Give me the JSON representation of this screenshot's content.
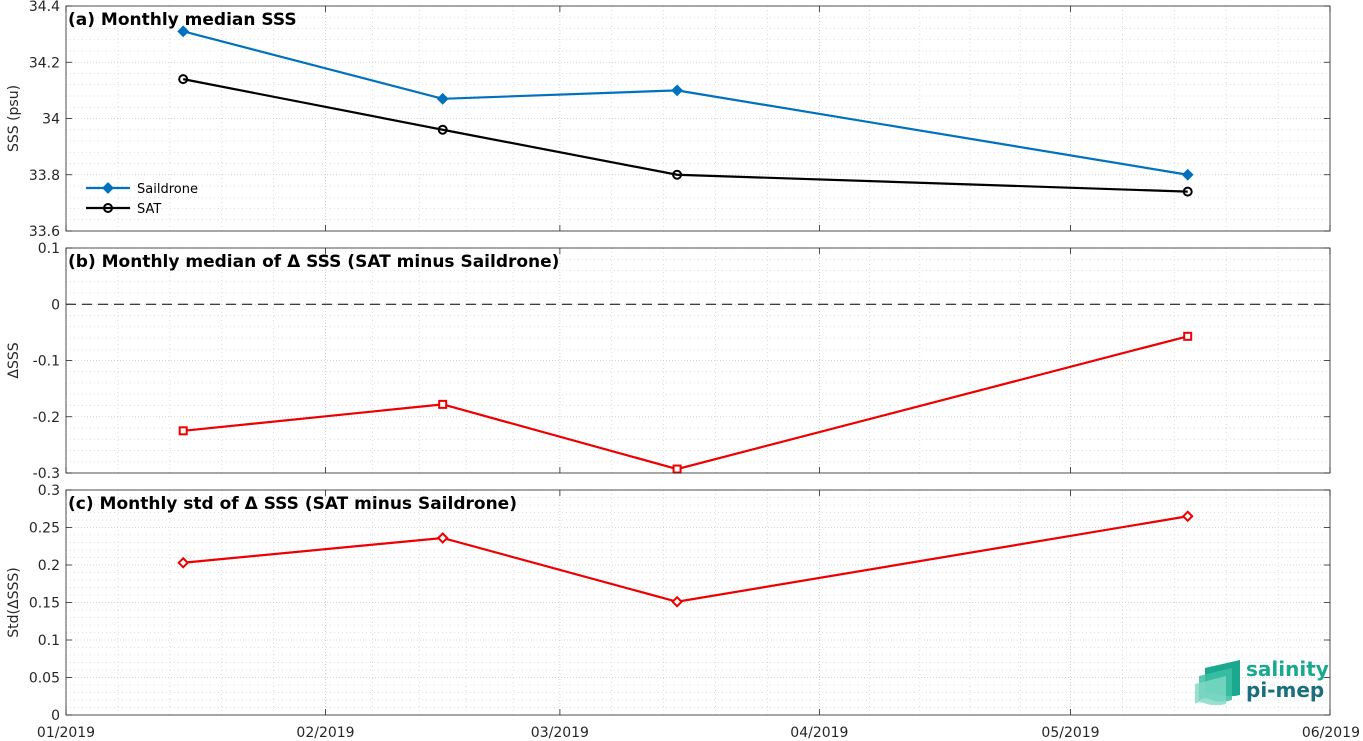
{
  "chart_data": [
    {
      "type": "line",
      "title": "(a) Monthly median SSS",
      "ylabel": "SSS (psu)",
      "ylim": [
        33.6,
        34.4
      ],
      "yticks": [
        "33.6",
        "33.8",
        "34",
        "34.2",
        "34.4"
      ],
      "grid": true,
      "legend_position": "lower-left",
      "x": [
        "2019-01-15",
        "2019-02-15",
        "2019-03-15",
        "2019-05-15"
      ],
      "series": [
        {
          "name": "Saildrone",
          "color": "#0072bd",
          "marker": "diamond-filled",
          "values": [
            34.31,
            34.07,
            34.1,
            33.8
          ]
        },
        {
          "name": "SAT",
          "color": "#000000",
          "marker": "circle-open",
          "values": [
            34.14,
            33.96,
            33.8,
            33.74
          ]
        }
      ]
    },
    {
      "type": "line",
      "title": "(b) Monthly median of Δ SSS (SAT minus Saildrone)",
      "ylabel": "ΔSSS",
      "ylim": [
        -0.3,
        0.1
      ],
      "yticks": [
        "-0.3",
        "-0.2",
        "-0.1",
        "0",
        "0.1"
      ],
      "grid": true,
      "reference_line": 0,
      "x": [
        "2019-01-15",
        "2019-02-15",
        "2019-03-15",
        "2019-05-15"
      ],
      "series": [
        {
          "color": "#ee0000",
          "marker": "square-open",
          "values": [
            -0.225,
            -0.178,
            -0.293,
            -0.057
          ]
        }
      ]
    },
    {
      "type": "line",
      "title": "(c) Monthly std of Δ SSS (SAT minus Saildrone)",
      "ylabel": "Std(ΔSSS)",
      "ylim": [
        0,
        0.3
      ],
      "yticks": [
        "0",
        "0.05",
        "0.1",
        "0.15",
        "0.2",
        "0.25",
        "0.3"
      ],
      "grid": true,
      "x": [
        "2019-01-15",
        "2019-02-15",
        "2019-03-15",
        "2019-05-15"
      ],
      "series": [
        {
          "color": "#ee0000",
          "marker": "diamond-open",
          "values": [
            0.203,
            0.236,
            0.151,
            0.265
          ]
        }
      ]
    }
  ],
  "xaxis": {
    "range": [
      "2019-01-01",
      "2019-06-01"
    ],
    "ticks": [
      {
        "date": "2019-01-01",
        "label": "01/2019"
      },
      {
        "date": "2019-02-01",
        "label": "02/2019"
      },
      {
        "date": "2019-03-01",
        "label": "03/2019"
      },
      {
        "date": "2019-04-01",
        "label": "04/2019"
      },
      {
        "date": "2019-05-01",
        "label": "05/2019"
      },
      {
        "date": "2019-06-01",
        "label": "06/2019"
      }
    ]
  },
  "logo": {
    "line1": "salinity",
    "line2": "pi-mep"
  }
}
